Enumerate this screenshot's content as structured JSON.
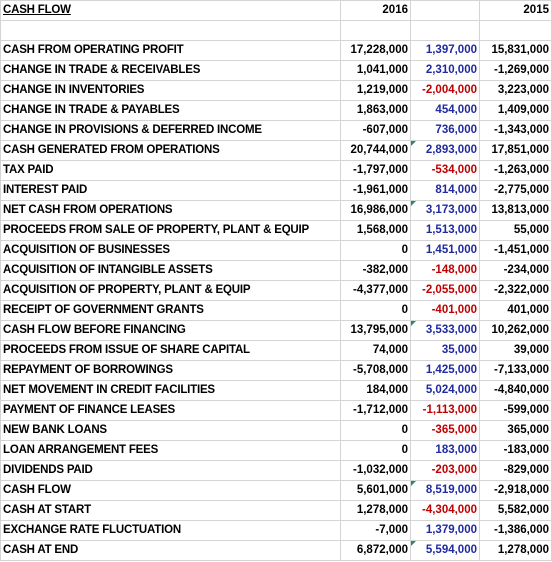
{
  "header": {
    "title": "CASH FLOW",
    "col_a": "2016",
    "col_b": "",
    "col_c": "2015"
  },
  "colors": {
    "positive_variance": "#1f2aa0",
    "negative_variance": "#c00000",
    "flag_marker": "#2e8b57"
  },
  "rows": [
    {
      "label": "CASH FROM OPERATING PROFIT",
      "a": "17,228,000",
      "b": "1,397,000",
      "c": "15,831,000",
      "neg": false,
      "flag": false
    },
    {
      "label": "CHANGE IN TRADE & RECEIVABLES",
      "a": "1,041,000",
      "b": "2,310,000",
      "c": "-1,269,000",
      "neg": false,
      "flag": false
    },
    {
      "label": "CHANGE IN INVENTORIES",
      "a": "1,219,000",
      "b": "-2,004,000",
      "c": "3,223,000",
      "neg": true,
      "flag": false
    },
    {
      "label": "CHANGE IN TRADE & PAYABLES",
      "a": "1,863,000",
      "b": "454,000",
      "c": "1,409,000",
      "neg": false,
      "flag": false
    },
    {
      "label": "CHANGE IN PROVISIONS & DEFERRED INCOME",
      "a": "-607,000",
      "b": "736,000",
      "c": "-1,343,000",
      "neg": false,
      "flag": false
    },
    {
      "label": "CASH GENERATED FROM OPERATIONS",
      "a": "20,744,000",
      "b": "2,893,000",
      "c": "17,851,000",
      "neg": false,
      "flag": true
    },
    {
      "label": "TAX PAID",
      "a": "-1,797,000",
      "b": "-534,000",
      "c": "-1,263,000",
      "neg": true,
      "flag": false
    },
    {
      "label": "INTEREST PAID",
      "a": "-1,961,000",
      "b": "814,000",
      "c": "-2,775,000",
      "neg": false,
      "flag": false
    },
    {
      "label": "NET CASH FROM OPERATIONS",
      "a": "16,986,000",
      "b": "3,173,000",
      "c": "13,813,000",
      "neg": false,
      "flag": true
    },
    {
      "label": "PROCEEDS FROM SALE OF PROPERTY, PLANT & EQUIP",
      "a": "1,568,000",
      "b": "1,513,000",
      "c": "55,000",
      "neg": false,
      "flag": false
    },
    {
      "label": "ACQUISITION OF BUSINESSES",
      "a": "0",
      "b": "1,451,000",
      "c": "-1,451,000",
      "neg": false,
      "flag": false
    },
    {
      "label": "ACQUISITION OF INTANGIBLE ASSETS",
      "a": "-382,000",
      "b": "-148,000",
      "c": "-234,000",
      "neg": true,
      "flag": false
    },
    {
      "label": "ACQUISITION OF PROPERTY, PLANT & EQUIP",
      "a": "-4,377,000",
      "b": "-2,055,000",
      "c": "-2,322,000",
      "neg": true,
      "flag": false
    },
    {
      "label": "RECEIPT OF GOVERNMENT GRANTS",
      "a": "0",
      "b": "-401,000",
      "c": "401,000",
      "neg": true,
      "flag": false
    },
    {
      "label": "CASH FLOW BEFORE FINANCING",
      "a": "13,795,000",
      "b": "3,533,000",
      "c": "10,262,000",
      "neg": false,
      "flag": true
    },
    {
      "label": "PROCEEDS FROM ISSUE OF SHARE CAPITAL",
      "a": "74,000",
      "b": "35,000",
      "c": "39,000",
      "neg": false,
      "flag": false
    },
    {
      "label": "REPAYMENT OF BORROWINGS",
      "a": "-5,708,000",
      "b": "1,425,000",
      "c": "-7,133,000",
      "neg": false,
      "flag": false
    },
    {
      "label": "NET MOVEMENT IN CREDIT FACILITIES",
      "a": "184,000",
      "b": "5,024,000",
      "c": "-4,840,000",
      "neg": false,
      "flag": false
    },
    {
      "label": "PAYMENT OF FINANCE LEASES",
      "a": "-1,712,000",
      "b": "-1,113,000",
      "c": "-599,000",
      "neg": true,
      "flag": false
    },
    {
      "label": "NEW BANK LOANS",
      "a": "0",
      "b": "-365,000",
      "c": "365,000",
      "neg": true,
      "flag": false
    },
    {
      "label": "LOAN ARRANGEMENT FEES",
      "a": "0",
      "b": "183,000",
      "c": "-183,000",
      "neg": false,
      "flag": false
    },
    {
      "label": "DIVIDENDS PAID",
      "a": "-1,032,000",
      "b": "-203,000",
      "c": "-829,000",
      "neg": true,
      "flag": false
    },
    {
      "label": "CASH FLOW",
      "a": "5,601,000",
      "b": "8,519,000",
      "c": "-2,918,000",
      "neg": false,
      "flag": true
    },
    {
      "label": "CASH AT START",
      "a": "1,278,000",
      "b": "-4,304,000",
      "c": "5,582,000",
      "neg": true,
      "flag": false
    },
    {
      "label": "EXCHANGE RATE FLUCTUATION",
      "a": "-7,000",
      "b": "1,379,000",
      "c": "-1,386,000",
      "neg": false,
      "flag": false
    },
    {
      "label": "CASH AT END",
      "a": "6,872,000",
      "b": "5,594,000",
      "c": "1,278,000",
      "neg": false,
      "flag": true
    }
  ]
}
